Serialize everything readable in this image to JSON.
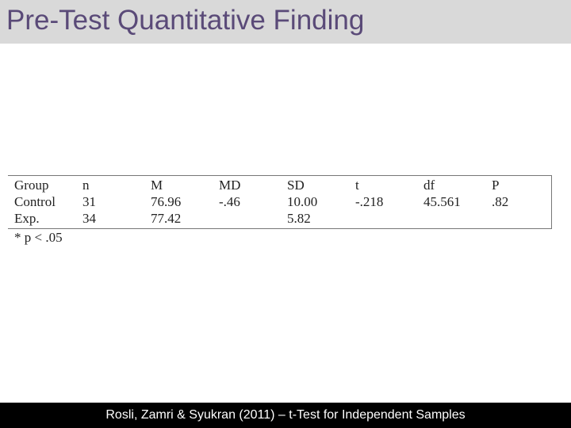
{
  "header": {
    "title": "Pre-Test Quantitative Finding"
  },
  "table": {
    "columns": [
      "Group",
      "n",
      "M",
      "MD",
      "SD",
      "t",
      "df",
      "P"
    ],
    "rows": [
      [
        "Control",
        "31",
        "76.96",
        "-.46",
        "10.00",
        "-.218",
        "45.561",
        ".82"
      ],
      [
        "Exp.",
        "34",
        "77.42",
        null,
        "5.82",
        null,
        null,
        null
      ]
    ],
    "note": "* p < .05"
  },
  "footer": {
    "text": "Rosli, Zamri & Syukran (2011) – t-Test for Independent Samples"
  }
}
